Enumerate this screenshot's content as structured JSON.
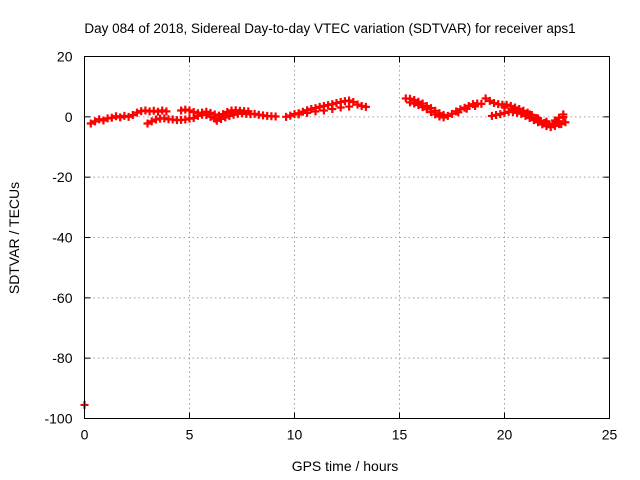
{
  "chart_data": {
    "type": "scatter",
    "title": "Day 084 of 2018, Sidereal Day-to-day VTEC variation (SDTVAR) for receiver aps1",
    "xlabel": "GPS time / hours",
    "ylabel": "SDTVAR / TECUs",
    "xlim": [
      0,
      25
    ],
    "ylim": [
      -100,
      20
    ],
    "xticks": [
      0,
      5,
      10,
      15,
      20,
      25
    ],
    "xtick_labels": [
      "0",
      "5",
      "10",
      "15",
      "20",
      "25"
    ],
    "yticks": [
      -100,
      -80,
      -60,
      -40,
      -20,
      0,
      20
    ],
    "ytick_labels": [
      "-100",
      "-80",
      "-60",
      "-40",
      "-20",
      "0",
      "20"
    ],
    "grid": true,
    "marker": "+",
    "color": "#ff0000",
    "series": [
      {
        "name": "SDTVAR",
        "points": [
          [
            0.3,
            -2.2
          ],
          [
            0.5,
            -1.5
          ],
          [
            0.7,
            -0.8
          ],
          [
            0.9,
            -1.2
          ],
          [
            1.1,
            -0.5
          ],
          [
            1.3,
            -0.3
          ],
          [
            1.5,
            0.2
          ],
          [
            1.7,
            -0.2
          ],
          [
            1.9,
            0.3
          ],
          [
            2.1,
            0.0
          ],
          [
            2.3,
            0.6
          ],
          [
            2.5,
            1.4
          ],
          [
            2.7,
            1.9
          ],
          [
            2.9,
            2.1
          ],
          [
            3.1,
            1.8
          ],
          [
            3.3,
            2.0
          ],
          [
            3.5,
            1.7
          ],
          [
            3.7,
            2.1
          ],
          [
            3.9,
            1.8
          ],
          [
            3.0,
            -2.2
          ],
          [
            3.2,
            -1.5
          ],
          [
            3.4,
            -0.9
          ],
          [
            3.6,
            -0.6
          ],
          [
            3.8,
            -0.5
          ],
          [
            4.0,
            -0.8
          ],
          [
            4.2,
            -0.9
          ],
          [
            4.4,
            -1.1
          ],
          [
            4.6,
            -1.0
          ],
          [
            4.8,
            -0.9
          ],
          [
            5.0,
            -0.6
          ],
          [
            5.2,
            -0.4
          ],
          [
            5.4,
            0.3
          ],
          [
            5.6,
            0.7
          ],
          [
            5.8,
            0.6
          ],
          [
            6.0,
            0.0
          ],
          [
            6.2,
            -0.6
          ],
          [
            4.6,
            2.1
          ],
          [
            4.8,
            2.4
          ],
          [
            5.0,
            2.1
          ],
          [
            5.2,
            1.6
          ],
          [
            5.4,
            1.2
          ],
          [
            5.6,
            1.4
          ],
          [
            5.8,
            1.7
          ],
          [
            6.0,
            1.3
          ],
          [
            6.2,
            0.8
          ],
          [
            6.4,
            0.4
          ],
          [
            6.6,
            0.9
          ],
          [
            6.8,
            1.6
          ],
          [
            7.0,
            2.1
          ],
          [
            7.2,
            2.2
          ],
          [
            7.4,
            2.0
          ],
          [
            7.6,
            1.9
          ],
          [
            7.8,
            1.8
          ],
          [
            6.3,
            -1.3
          ],
          [
            6.5,
            -0.7
          ],
          [
            6.7,
            -0.2
          ],
          [
            6.9,
            0.3
          ],
          [
            7.1,
            0.7
          ],
          [
            7.3,
            1.0
          ],
          [
            7.5,
            1.2
          ],
          [
            7.7,
            1.0
          ],
          [
            7.9,
            0.9
          ],
          [
            8.1,
            1.0
          ],
          [
            8.3,
            0.7
          ],
          [
            8.5,
            0.5
          ],
          [
            8.7,
            0.3
          ],
          [
            8.9,
            0.2
          ],
          [
            9.1,
            0.1
          ],
          [
            9.6,
            0.0
          ],
          [
            9.8,
            0.4
          ],
          [
            10.0,
            0.9
          ],
          [
            10.2,
            1.2
          ],
          [
            10.4,
            1.7
          ],
          [
            10.6,
            2.2
          ],
          [
            10.8,
            2.6
          ],
          [
            11.0,
            2.9
          ],
          [
            11.2,
            3.3
          ],
          [
            11.4,
            3.6
          ],
          [
            11.6,
            3.9
          ],
          [
            11.8,
            4.2
          ],
          [
            12.0,
            4.6
          ],
          [
            12.2,
            4.9
          ],
          [
            12.4,
            5.2
          ],
          [
            12.6,
            5.4
          ],
          [
            12.8,
            4.9
          ],
          [
            13.0,
            4.1
          ],
          [
            13.2,
            3.6
          ],
          [
            13.4,
            3.3
          ],
          [
            10.2,
            0.8
          ],
          [
            10.6,
            1.3
          ],
          [
            11.0,
            1.8
          ],
          [
            11.4,
            2.1
          ],
          [
            11.8,
            2.6
          ],
          [
            12.2,
            3.1
          ],
          [
            12.6,
            3.4
          ],
          [
            15.3,
            6.1
          ],
          [
            15.5,
            6.0
          ],
          [
            15.7,
            5.6
          ],
          [
            15.9,
            5.0
          ],
          [
            16.1,
            4.4
          ],
          [
            16.3,
            3.6
          ],
          [
            16.5,
            2.9
          ],
          [
            16.7,
            2.0
          ],
          [
            16.9,
            1.2
          ],
          [
            17.1,
            0.6
          ],
          [
            15.5,
            4.8
          ],
          [
            15.7,
            4.4
          ],
          [
            15.9,
            3.9
          ],
          [
            16.1,
            3.2
          ],
          [
            16.3,
            2.5
          ],
          [
            16.5,
            1.6
          ],
          [
            16.7,
            0.8
          ],
          [
            16.9,
            0.1
          ],
          [
            17.1,
            -0.2
          ],
          [
            17.3,
            0.3
          ],
          [
            17.5,
            1.0
          ],
          [
            17.7,
            1.8
          ],
          [
            17.9,
            2.5
          ],
          [
            18.1,
            3.0
          ],
          [
            18.3,
            3.6
          ],
          [
            18.5,
            4.2
          ],
          [
            18.7,
            4.4
          ],
          [
            18.9,
            4.3
          ],
          [
            17.8,
            1.5
          ],
          [
            18.2,
            2.7
          ],
          [
            18.6,
            3.6
          ],
          [
            19.1,
            6.1
          ],
          [
            19.3,
            5.3
          ],
          [
            19.5,
            4.6
          ],
          [
            19.7,
            4.2
          ],
          [
            19.9,
            4.0
          ],
          [
            20.1,
            4.0
          ],
          [
            20.3,
            3.6
          ],
          [
            20.5,
            3.1
          ],
          [
            20.7,
            2.6
          ],
          [
            20.9,
            2.0
          ],
          [
            21.1,
            1.4
          ],
          [
            21.3,
            0.6
          ],
          [
            21.5,
            -0.4
          ],
          [
            21.7,
            -1.3
          ],
          [
            21.9,
            -2.0
          ],
          [
            22.1,
            -2.4
          ],
          [
            22.3,
            -2.2
          ],
          [
            22.5,
            -1.8
          ],
          [
            19.4,
            0.3
          ],
          [
            19.6,
            0.6
          ],
          [
            19.8,
            0.9
          ],
          [
            20.0,
            1.3
          ],
          [
            20.2,
            1.7
          ],
          [
            20.4,
            1.6
          ],
          [
            20.6,
            1.3
          ],
          [
            20.8,
            1.0
          ],
          [
            21.0,
            0.3
          ],
          [
            21.2,
            -0.4
          ],
          [
            21.4,
            -1.1
          ],
          [
            21.6,
            -1.8
          ],
          [
            21.8,
            -2.5
          ],
          [
            22.0,
            -3.1
          ],
          [
            22.2,
            -3.4
          ],
          [
            22.4,
            -3.0
          ],
          [
            22.6,
            -2.4
          ],
          [
            20.0,
            3.2
          ],
          [
            20.4,
            2.4
          ],
          [
            20.8,
            1.7
          ],
          [
            21.2,
            0.8
          ],
          [
            21.6,
            -0.5
          ],
          [
            22.0,
            -1.6
          ],
          [
            22.4,
            -1.2
          ],
          [
            22.6,
            -0.3
          ],
          [
            22.8,
            -0.1
          ],
          [
            22.8,
            0.8
          ],
          [
            22.9,
            -1.8
          ],
          [
            22.7,
            -2.4
          ],
          [
            0.0,
            -95.5
          ]
        ]
      }
    ]
  }
}
